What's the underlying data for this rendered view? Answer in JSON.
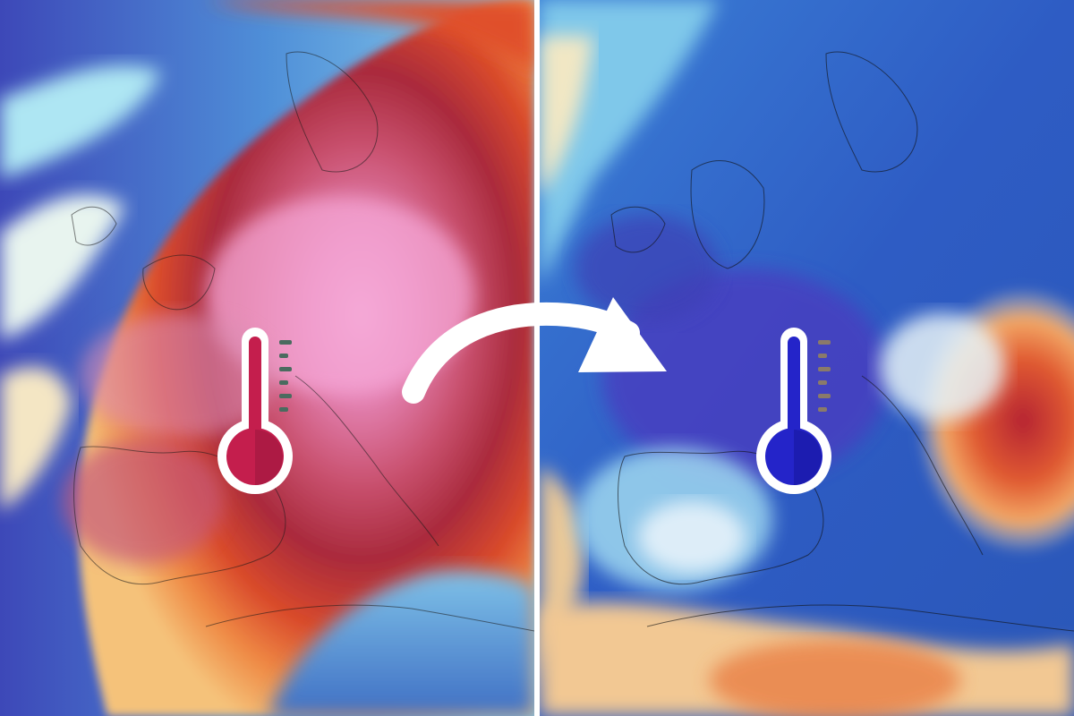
{
  "image": {
    "description_labels": []
  },
  "panels": [
    {
      "id": "warm",
      "state": "heatwave",
      "palette": [
        "#3a3fb8",
        "#4d8fd6",
        "#9fe0ee",
        "#f3e9c8",
        "#f2a55a",
        "#e0502b",
        "#b8283a",
        "#d8597f",
        "#f2a3d4"
      ]
    },
    {
      "id": "cold",
      "state": "cool",
      "palette": [
        "#4a3fbf",
        "#2f64c9",
        "#4f98e0",
        "#a6e3f0",
        "#ffffff",
        "#f0c48a",
        "#e8743a",
        "#c8302e"
      ]
    }
  ],
  "icons": {
    "hot": {
      "name": "thermometer-hot-icon",
      "color": "#c41e4d"
    },
    "cold": {
      "name": "thermometer-cold-icon",
      "color": "#2424c9"
    },
    "transition": {
      "name": "curved-arrow-right-icon",
      "color": "#ffffff"
    }
  },
  "colors": {
    "hot_accent": "#c41e4d",
    "cold_accent": "#2424c9",
    "divider": "#ffffff"
  }
}
